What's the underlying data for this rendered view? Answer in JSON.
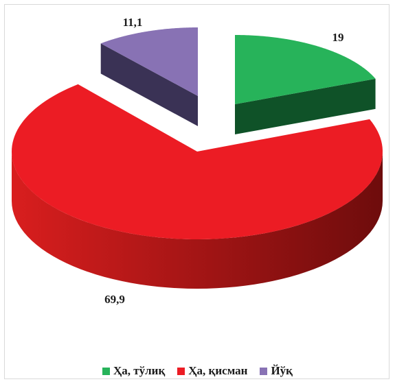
{
  "chart_data": {
    "type": "pie",
    "style": "3d-exploded",
    "categories": [
      "Ҳа, тўлиқ",
      "Ҳа, қисман",
      "Йўқ"
    ],
    "values": [
      19,
      69.9,
      11.1
    ],
    "data_labels": [
      "19",
      "69,9",
      "11,1"
    ],
    "colors": {
      "top": [
        "#27b35a",
        "#ec1c24",
        "#8872b4"
      ],
      "side_dark": [
        "#0f5228",
        "#6e0c0c",
        "#3a3255"
      ],
      "side_light": [
        "#1a7a3c",
        "#d91e1e",
        "#5a4d82"
      ]
    },
    "legend_position": "bottom",
    "title": ""
  },
  "legend": {
    "items": [
      {
        "label": "Ҳа, тўлиқ",
        "color": "#27b35a"
      },
      {
        "label": "Ҳа, қисман",
        "color": "#ec1c24"
      },
      {
        "label": "Йўқ",
        "color": "#8872b4"
      }
    ]
  }
}
